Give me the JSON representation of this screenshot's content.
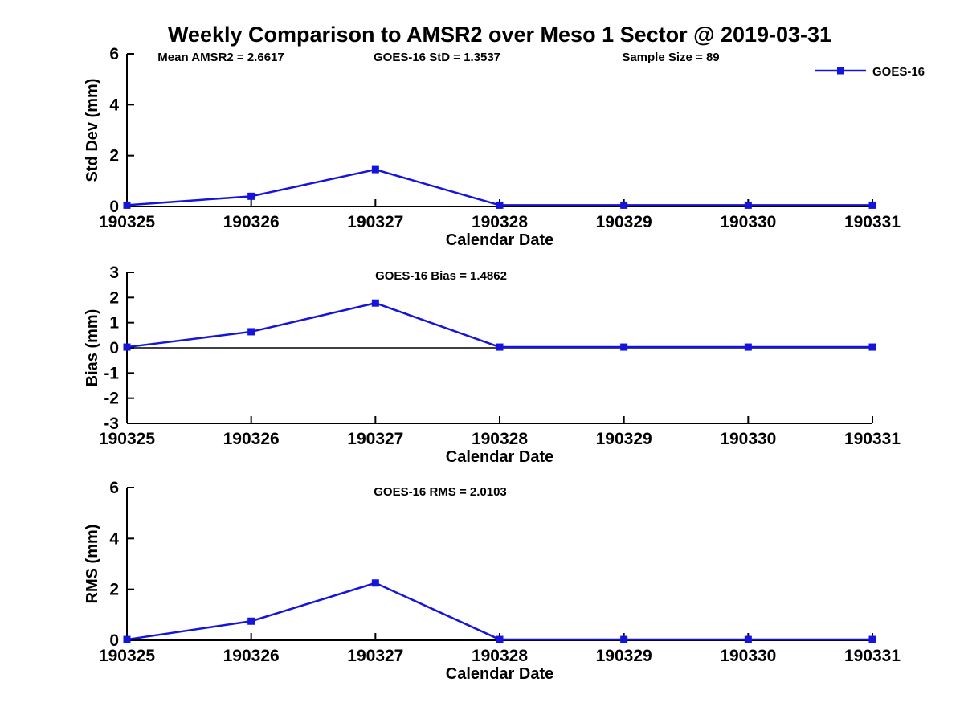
{
  "title": "Weekly Comparison to AMSR2 over Meso 1 Sector @ 2019-03-31",
  "colors": {
    "series": "#1414dc",
    "axis": "#000000",
    "text": "#000000",
    "background": "#ffffff"
  },
  "legend": {
    "label": "GOES-16",
    "position": "top-right"
  },
  "xlabel": "Calendar Date",
  "x_categories": [
    "190325",
    "190326",
    "190327",
    "190328",
    "190329",
    "190330",
    "190331"
  ],
  "chart_data": [
    {
      "type": "line",
      "name": "std-dev-panel",
      "title": "",
      "ylabel": "Std Dev (mm)",
      "xlabel": "Calendar Date",
      "ylim": [
        0,
        6
      ],
      "yticks": [
        0,
        2,
        4,
        6
      ],
      "grid": false,
      "legend_position": "top-right",
      "categories": [
        "190325",
        "190326",
        "190327",
        "190328",
        "190329",
        "190330",
        "190331"
      ],
      "series": [
        {
          "name": "GOES-16",
          "values": [
            0.05,
            0.4,
            1.45,
            0.05,
            0.05,
            0.05,
            0.05
          ]
        }
      ],
      "annotations": [
        "Mean AMSR2 = 2.6617",
        "GOES-16 StD = 1.3537",
        "Sample Size = 89"
      ]
    },
    {
      "type": "line",
      "name": "bias-panel",
      "title": "",
      "ylabel": "Bias (mm)",
      "xlabel": "Calendar Date",
      "ylim": [
        -3,
        3
      ],
      "yticks": [
        -3,
        -2,
        -1,
        0,
        1,
        2,
        3
      ],
      "zero_line": true,
      "grid": false,
      "categories": [
        "190325",
        "190326",
        "190327",
        "190328",
        "190329",
        "190330",
        "190331"
      ],
      "series": [
        {
          "name": "GOES-16",
          "values": [
            0.03,
            0.64,
            1.78,
            0.03,
            0.03,
            0.03,
            0.03
          ]
        }
      ],
      "annotations": [
        "GOES-16 Bias  = 1.4862"
      ]
    },
    {
      "type": "line",
      "name": "rms-panel",
      "title": "",
      "ylabel": "RMS (mm)",
      "xlabel": "Calendar Date",
      "ylim": [
        0,
        6
      ],
      "yticks": [
        0,
        2,
        4,
        6
      ],
      "grid": false,
      "categories": [
        "190325",
        "190326",
        "190327",
        "190328",
        "190329",
        "190330",
        "190331"
      ],
      "series": [
        {
          "name": "GOES-16",
          "values": [
            0.03,
            0.75,
            2.25,
            0.03,
            0.03,
            0.03,
            0.03
          ]
        }
      ],
      "annotations": [
        "GOES-16 RMS = 2.0103"
      ]
    }
  ]
}
